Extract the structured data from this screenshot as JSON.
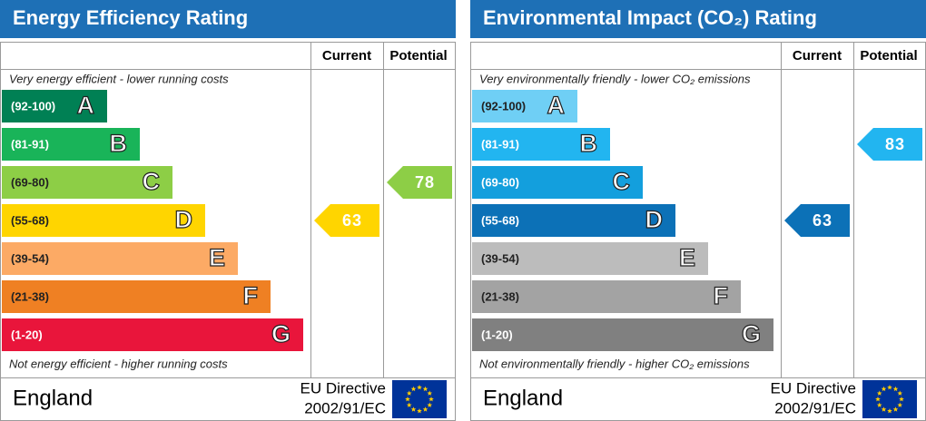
{
  "panels": [
    {
      "title": "Energy Efficiency Rating",
      "col_current": "Current",
      "col_potential": "Potential",
      "top_note": "Very energy efficient - lower running costs",
      "bottom_note": "Not energy efficient - higher running costs",
      "bands": [
        {
          "range": "(92-100)",
          "letter": "A",
          "color": "#008054"
        },
        {
          "range": "(81-91)",
          "letter": "B",
          "color": "#19b459"
        },
        {
          "range": "(69-80)",
          "letter": "C",
          "color": "#8dce46"
        },
        {
          "range": "(55-68)",
          "letter": "D",
          "color": "#ffd500"
        },
        {
          "range": "(39-54)",
          "letter": "E",
          "color": "#fcaa65"
        },
        {
          "range": "(21-38)",
          "letter": "F",
          "color": "#ef8023"
        },
        {
          "range": "(1-20)",
          "letter": "G",
          "color": "#e9153b"
        }
      ],
      "current": 63,
      "potential": 78,
      "country": "England",
      "directive": [
        "EU Directive",
        "2002/91/EC"
      ]
    },
    {
      "title": "Environmental Impact (CO₂) Rating",
      "col_current": "Current",
      "col_potential": "Potential",
      "top_note": "Very environmentally friendly - lower CO₂ emissions",
      "bottom_note": "Not environmentally friendly - higher CO₂ emissions",
      "bands": [
        {
          "range": "(92-100)",
          "letter": "A",
          "color": "#6fcff5"
        },
        {
          "range": "(81-91)",
          "letter": "B",
          "color": "#22b5f0"
        },
        {
          "range": "(69-80)",
          "letter": "C",
          "color": "#139fdd"
        },
        {
          "range": "(55-68)",
          "letter": "D",
          "color": "#0c71b7"
        },
        {
          "range": "(39-54)",
          "letter": "E",
          "color": "#bcbcbc"
        },
        {
          "range": "(21-38)",
          "letter": "F",
          "color": "#a3a3a3"
        },
        {
          "range": "(1-20)",
          "letter": "G",
          "color": "#808080"
        }
      ],
      "current": 63,
      "potential": 83,
      "country": "England",
      "directive": [
        "EU Directive",
        "2002/91/EC"
      ]
    }
  ]
}
